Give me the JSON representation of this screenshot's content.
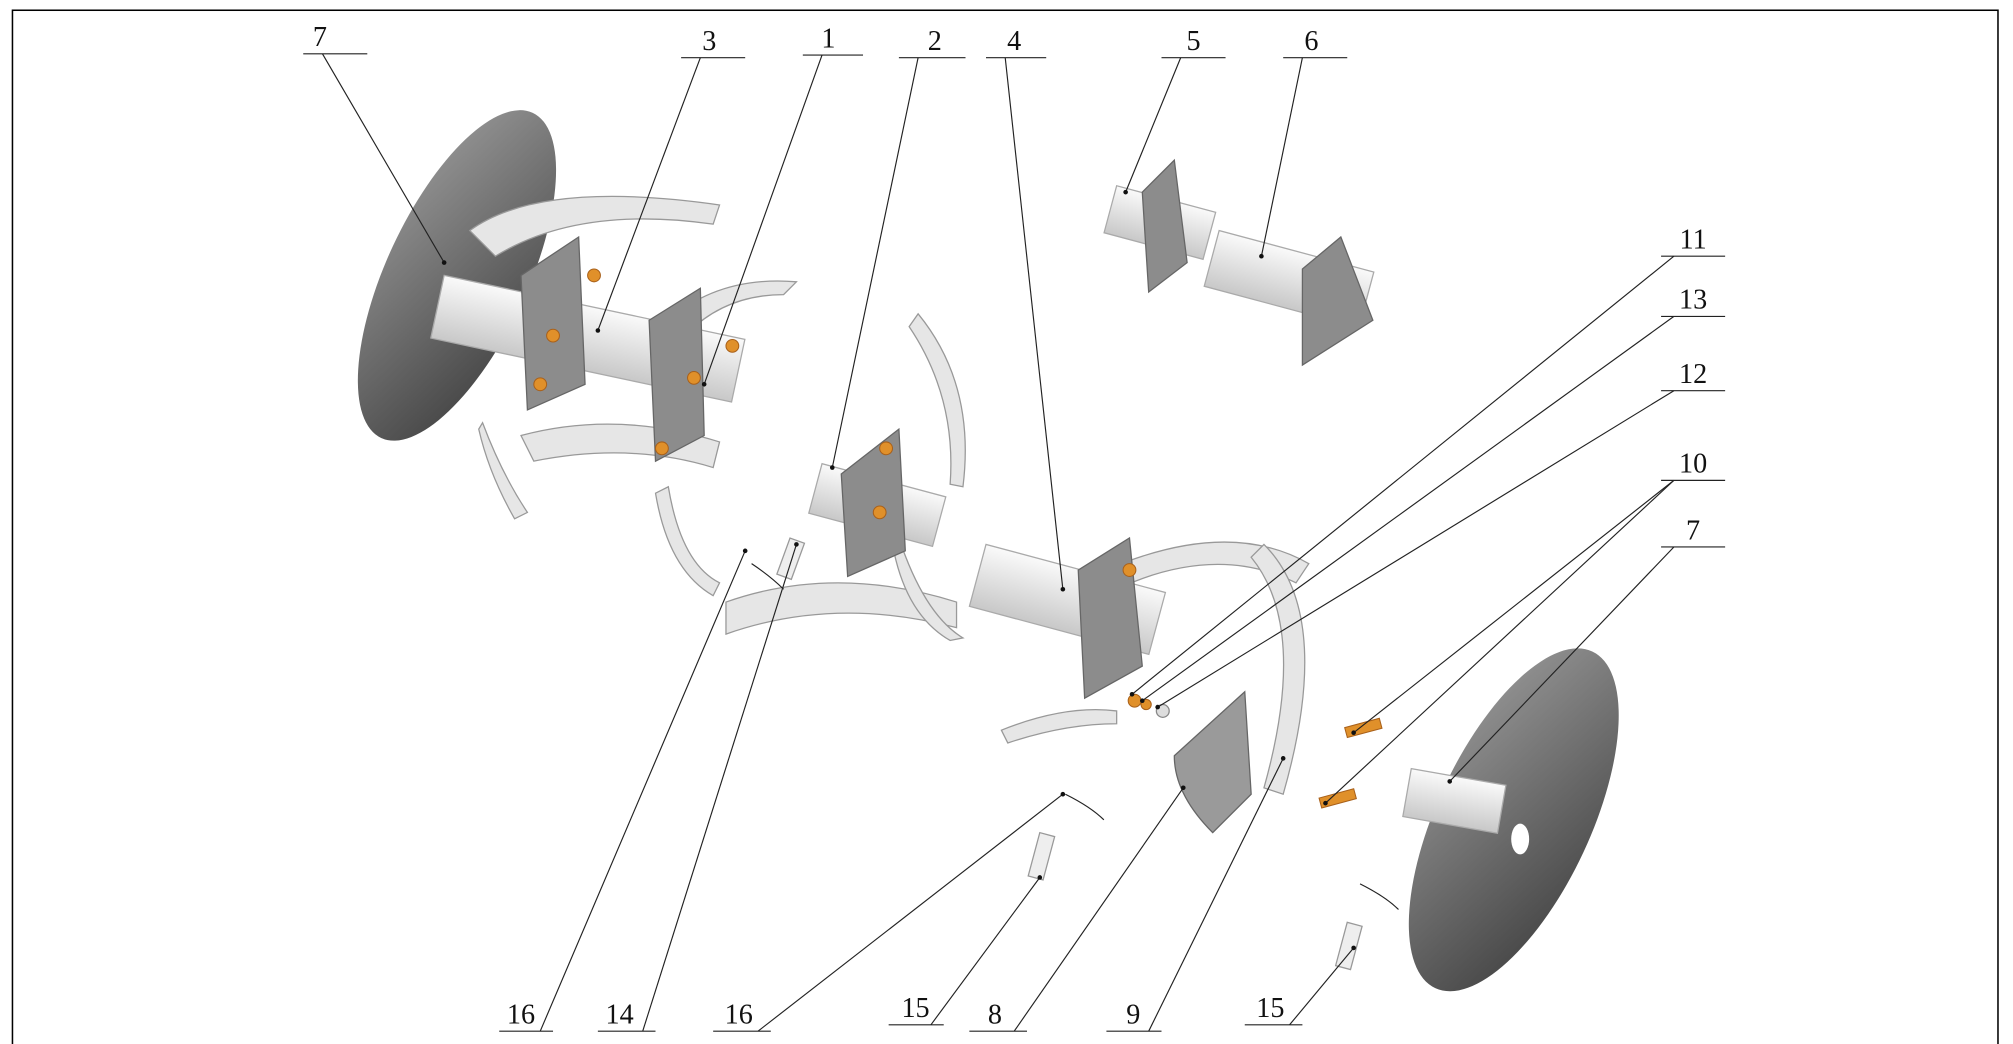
{
  "callouts": [
    {
      "label": "7"
    },
    {
      "label": "3"
    },
    {
      "label": "1"
    },
    {
      "label": "2"
    },
    {
      "label": "4"
    },
    {
      "label": "5"
    },
    {
      "label": "6"
    },
    {
      "label": "11"
    },
    {
      "label": "13"
    },
    {
      "label": "12"
    },
    {
      "label": "10"
    },
    {
      "label": "7"
    },
    {
      "label": "16"
    },
    {
      "label": "14"
    },
    {
      "label": "16"
    },
    {
      "label": "15"
    },
    {
      "label": "8"
    },
    {
      "label": "9"
    },
    {
      "label": "15"
    }
  ]
}
